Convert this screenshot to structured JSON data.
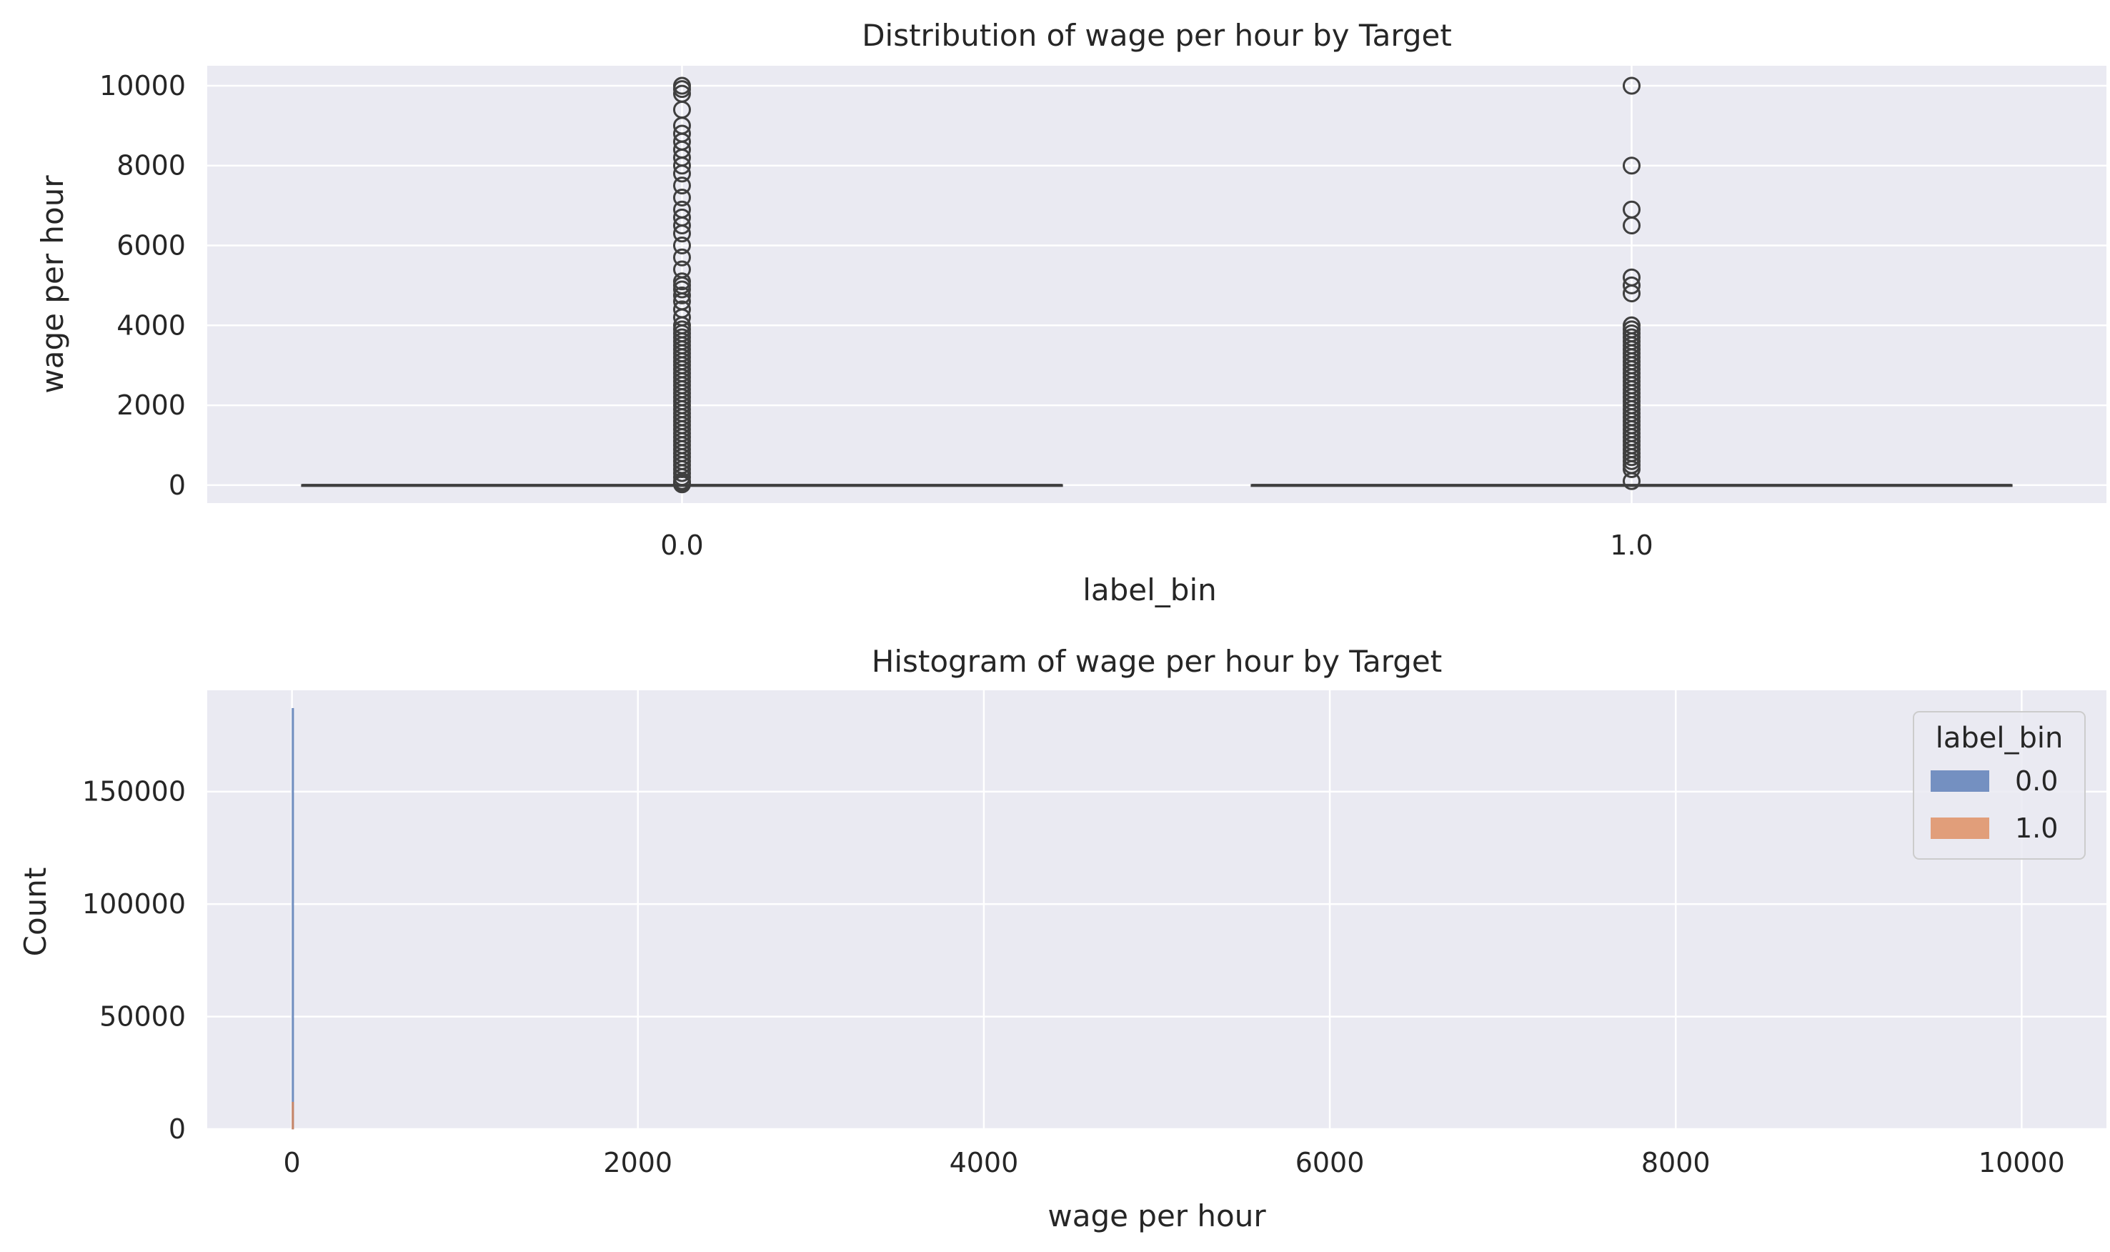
{
  "chart_data": [
    {
      "type": "box",
      "title": "Distribution of wage per hour by Target",
      "xlabel": "label_bin",
      "ylabel": "wage per hour",
      "categories": [
        "0.0",
        "1.0"
      ],
      "ylim": [
        -450,
        10500
      ],
      "yticks": [
        0,
        2000,
        4000,
        6000,
        8000,
        10000
      ],
      "grid": true,
      "series": [
        {
          "category": "0.0",
          "median": 0,
          "q1": 0,
          "q3": 0,
          "whisker_low": 0,
          "whisker_high": 0,
          "outliers": [
            9999,
            9916,
            9800,
            9400,
            9000,
            8800,
            8600,
            8400,
            8200,
            8000,
            7800,
            7500,
            7200,
            6900,
            6700,
            6500,
            6300,
            6000,
            5700,
            5400,
            5100,
            5000,
            4900,
            4750,
            4600,
            4400,
            4200,
            4000,
            3900,
            3800,
            3700,
            3600,
            3500,
            3400,
            3300,
            3200,
            3100,
            3000,
            2900,
            2800,
            2700,
            2600,
            2500,
            2400,
            2300,
            2200,
            2100,
            2000,
            1900,
            1800,
            1700,
            1600,
            1500,
            1400,
            1300,
            1200,
            1100,
            1000,
            900,
            800,
            700,
            600,
            500,
            400,
            300,
            200,
            100,
            50,
            20
          ]
        },
        {
          "category": "1.0",
          "median": 0,
          "q1": 0,
          "q3": 0,
          "whisker_low": 0,
          "whisker_high": 0,
          "outliers": [
            9999,
            8000,
            6900,
            6500,
            5200,
            5000,
            4800,
            4000,
            3900,
            3800,
            3700,
            3600,
            3500,
            3400,
            3300,
            3200,
            3100,
            3000,
            2900,
            2800,
            2700,
            2600,
            2500,
            2400,
            2300,
            2200,
            2100,
            2000,
            1900,
            1800,
            1700,
            1600,
            1500,
            1400,
            1300,
            1200,
            1100,
            1000,
            900,
            800,
            700,
            600,
            500,
            400,
            100
          ]
        }
      ]
    },
    {
      "type": "histogram",
      "title": "Histogram of wage per hour by Target",
      "xlabel": "wage per hour",
      "ylabel": "Count",
      "xlim": [
        -490,
        10490
      ],
      "ylim": [
        0,
        195000
      ],
      "xticks": [
        0,
        2000,
        4000,
        6000,
        8000,
        10000
      ],
      "yticks": [
        0,
        50000,
        100000,
        150000
      ],
      "grid": true,
      "legend": {
        "title": "label_bin",
        "placement": "top-right"
      },
      "series": [
        {
          "name": "0.0",
          "color": "#4c72b0",
          "bins": [
            {
              "x0": 0,
              "x1": 10,
              "count": 187000
            }
          ]
        },
        {
          "name": "1.0",
          "color": "#dd8452",
          "bins": [
            {
              "x0": 0,
              "x1": 10,
              "count": 12000
            }
          ]
        }
      ]
    }
  ],
  "colors": {
    "axes_bg": "#eaeaf2",
    "grid": "#ffffff",
    "text": "#262626",
    "box_line": "#3f3f3f",
    "series_0": "#4c72b0",
    "series_1": "#dd8452"
  }
}
